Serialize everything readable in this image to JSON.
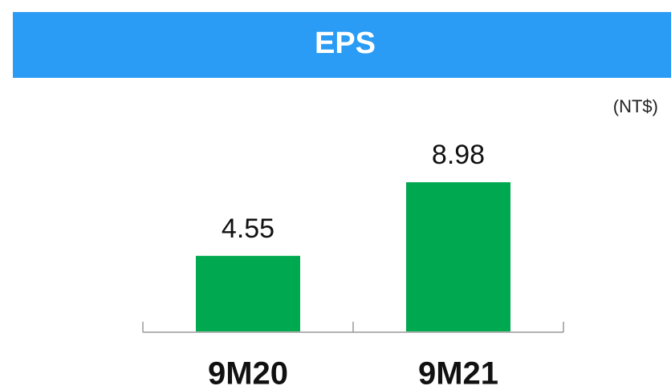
{
  "chart_data": {
    "type": "bar",
    "title": "EPS",
    "unit": "(NT$)",
    "categories": [
      "9M20",
      "9M21"
    ],
    "values": [
      4.55,
      8.98
    ],
    "color": "#00a84f",
    "header_color": "#2b9cf5"
  }
}
